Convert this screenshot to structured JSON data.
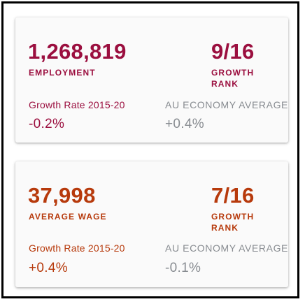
{
  "colors": {
    "employment_accent": "#9b0f3f",
    "wage_accent": "#b73a0c",
    "muted": "#888c91"
  },
  "cards": [
    {
      "main_value": "1,268,819",
      "main_label": "EMPLOYMENT",
      "rank_value": "9/16",
      "rank_label_line1": "GROWTH",
      "rank_label_line2": "RANK",
      "growth_label": "Growth Rate 2015-20",
      "growth_value": "-0.2%",
      "avg_label": "AU ECONOMY AVERAGE",
      "avg_value": "+0.4%"
    },
    {
      "main_value": "37,998",
      "main_label": "AVERAGE WAGE",
      "rank_value": "7/16",
      "rank_label_line1": "GROWTH",
      "rank_label_line2": "RANK",
      "growth_label": "Growth Rate 2015-20",
      "growth_value": "+0.4%",
      "avg_label": "AU ECONOMY AVERAGE",
      "avg_value": "-0.1%"
    }
  ]
}
